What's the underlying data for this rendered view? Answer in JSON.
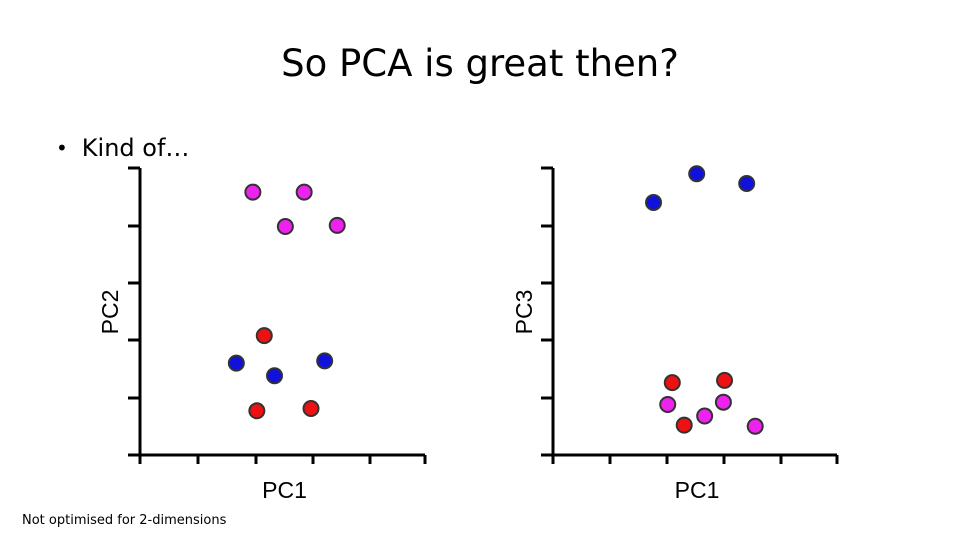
{
  "slide": {
    "title": "So PCA is great then?",
    "bullet": "Kind of…",
    "footnote": "Not optimised for 2-dimensions"
  },
  "colors": {
    "magenta": "#ee22ee",
    "red": "#ee1111",
    "blue": "#1111dd"
  },
  "chart_data": [
    {
      "type": "scatter",
      "xlabel": "PC1",
      "ylabel": "PC2",
      "xlim": [
        0,
        5
      ],
      "ylim": [
        0,
        5
      ],
      "grid": false,
      "series": [
        {
          "color": "magenta",
          "points": [
            [
              1.98,
              4.58
            ],
            [
              2.88,
              4.58
            ],
            [
              2.55,
              3.98
            ],
            [
              3.46,
              4.0
            ]
          ]
        },
        {
          "color": "red",
          "points": [
            [
              2.18,
              2.08
            ],
            [
              2.05,
              0.77
            ],
            [
              3.0,
              0.81
            ]
          ]
        },
        {
          "color": "blue",
          "points": [
            [
              1.69,
              1.6
            ],
            [
              2.36,
              1.38
            ],
            [
              3.24,
              1.64
            ]
          ]
        }
      ]
    },
    {
      "type": "scatter",
      "xlabel": "PC1",
      "ylabel": "PC3",
      "xlim": [
        0,
        5
      ],
      "ylim": [
        0,
        5
      ],
      "grid": false,
      "series": [
        {
          "color": "blue",
          "points": [
            [
              1.77,
              4.4
            ],
            [
              2.53,
              4.9
            ],
            [
              3.41,
              4.73
            ]
          ]
        },
        {
          "color": "red",
          "points": [
            [
              2.1,
              1.26
            ],
            [
              3.02,
              1.3
            ],
            [
              2.31,
              0.52
            ]
          ]
        },
        {
          "color": "magenta",
          "points": [
            [
              2.02,
              0.88
            ],
            [
              2.67,
              0.68
            ],
            [
              3.0,
              0.92
            ],
            [
              3.56,
              0.5
            ]
          ]
        }
      ]
    }
  ]
}
